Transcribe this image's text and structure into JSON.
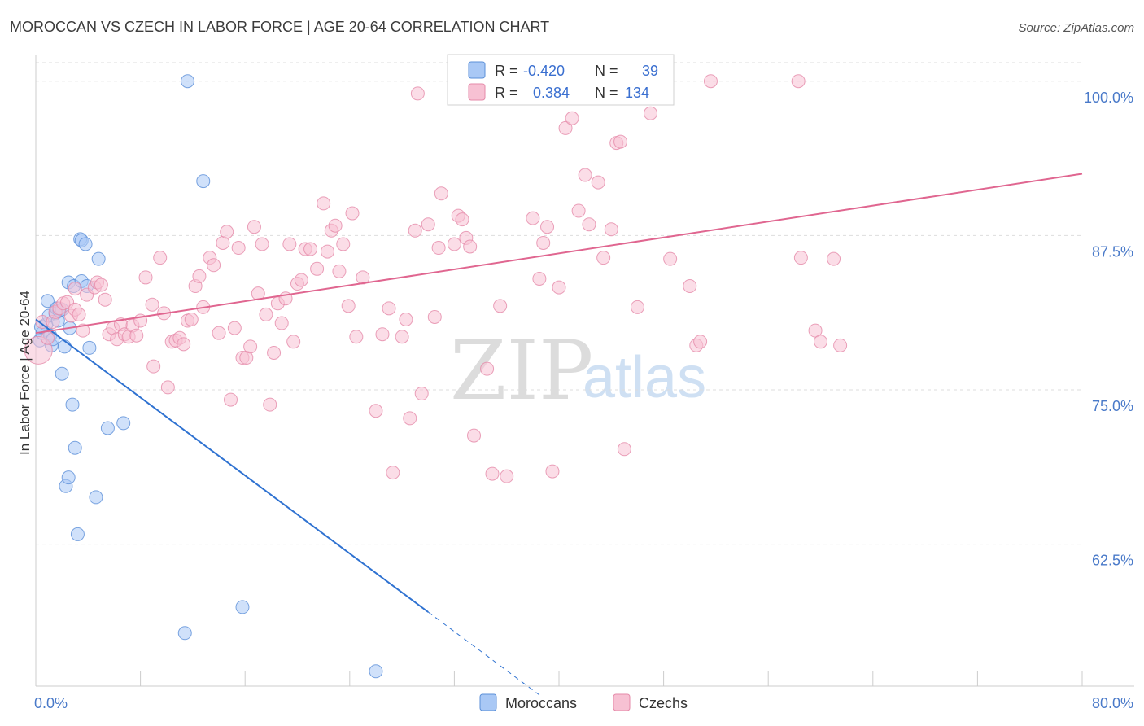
{
  "title": "MOROCCAN VS CZECH IN LABOR FORCE | AGE 20-64 CORRELATION CHART",
  "source": "Source: ZipAtlas.com",
  "watermark": {
    "zip": "ZIP",
    "atlas": "atlas"
  },
  "legend_top": {
    "rows": [
      {
        "r_label": "R =",
        "r_value": "-0.420",
        "n_label": "N =",
        "n_value": "39",
        "color": "#a9c8f5"
      },
      {
        "r_label": "R =",
        "r_value": "0.384",
        "n_label": "N =",
        "n_value": "134",
        "color": "#f5b7cb"
      }
    ]
  },
  "legend_bottom": {
    "items": [
      "Moroccans",
      "Czechs"
    ]
  },
  "colors": {
    "moroccans_fill": "#a9c8f5",
    "moroccans_stroke": "#5b8fd8",
    "moroccans_line": "#2f72d1",
    "czechs_fill": "#f7c1d3",
    "czechs_stroke": "#e58aa9",
    "czechs_line": "#e06690",
    "grid": "#dddddd",
    "tick_text": "#4a7ac9"
  },
  "chart_data": {
    "type": "scatter",
    "title": "MOROCCAN VS CZECH IN LABOR FORCE | AGE 20-64 CORRELATION CHART",
    "xlabel": "",
    "ylabel": "In Labor Force | Age 20-64",
    "xlim": [
      0,
      80
    ],
    "ylim": [
      51,
      101.5
    ],
    "x_tick_labels": [
      {
        "value": 0,
        "label": "0.0%"
      },
      {
        "value": 80,
        "label": "80.0%"
      }
    ],
    "y_tick_labels": [
      {
        "value": 62.5,
        "label": "62.5%"
      },
      {
        "value": 75.0,
        "label": "75.0%"
      },
      {
        "value": 87.5,
        "label": "87.5%"
      },
      {
        "value": 100.0,
        "label": "100.0%"
      }
    ],
    "grid": true,
    "legend_position": "top-center",
    "series": [
      {
        "name": "Moroccans",
        "r": -0.42,
        "n": 39,
        "trend": {
          "x0": 0.0,
          "y0": 80.7,
          "x1": 30.0,
          "y1": 57.0,
          "dash_to_x": 38.5
        },
        "points": [
          [
            0.3,
            79.0
          ],
          [
            0.5,
            79.6
          ],
          [
            0.8,
            80.3
          ],
          [
            0.9,
            82.2
          ],
          [
            1.0,
            81.0
          ],
          [
            1.1,
            79.4
          ],
          [
            1.2,
            78.6
          ],
          [
            1.3,
            79.1
          ],
          [
            1.5,
            81.2
          ],
          [
            1.6,
            81.6
          ],
          [
            1.7,
            80.6
          ],
          [
            1.8,
            81.4
          ],
          [
            2.0,
            81.5
          ],
          [
            2.0,
            76.3
          ],
          [
            2.3,
            67.2
          ],
          [
            2.2,
            78.5
          ],
          [
            2.5,
            67.9
          ],
          [
            2.5,
            83.7
          ],
          [
            2.6,
            80.0
          ],
          [
            2.8,
            73.8
          ],
          [
            2.9,
            83.4
          ],
          [
            3.0,
            70.3
          ],
          [
            3.2,
            63.3
          ],
          [
            3.4,
            87.2
          ],
          [
            3.5,
            87.1
          ],
          [
            3.5,
            83.8
          ],
          [
            3.8,
            86.8
          ],
          [
            3.9,
            83.4
          ],
          [
            4.1,
            78.4
          ],
          [
            4.6,
            66.3
          ],
          [
            4.8,
            85.6
          ],
          [
            5.5,
            71.9
          ],
          [
            6.7,
            72.3
          ],
          [
            11.4,
            55.3
          ],
          [
            11.6,
            100.0
          ],
          [
            12.8,
            91.9
          ],
          [
            15.8,
            57.4
          ],
          [
            26.0,
            52.2
          ],
          [
            0.4,
            80.1
          ]
        ]
      },
      {
        "name": "Czechs",
        "r": 0.384,
        "n": 134,
        "trend": {
          "x0": 0.0,
          "y0": 79.6,
          "x1": 80.0,
          "y1": 92.5
        },
        "points": [
          [
            0.2,
            78.2
          ],
          [
            0.5,
            80.5
          ],
          [
            0.9,
            79.2
          ],
          [
            1.3,
            80.5
          ],
          [
            1.5,
            81.3
          ],
          [
            1.8,
            81.6
          ],
          [
            2.1,
            82.0
          ],
          [
            2.4,
            82.1
          ],
          [
            2.7,
            81.0
          ],
          [
            3.0,
            81.5
          ],
          [
            3.0,
            83.2
          ],
          [
            3.3,
            81.1
          ],
          [
            3.6,
            79.8
          ],
          [
            3.9,
            82.7
          ],
          [
            4.5,
            83.3
          ],
          [
            4.7,
            83.7
          ],
          [
            5.0,
            83.5
          ],
          [
            5.3,
            82.3
          ],
          [
            5.6,
            79.5
          ],
          [
            5.9,
            80.0
          ],
          [
            6.2,
            79.1
          ],
          [
            6.5,
            80.3
          ],
          [
            6.8,
            79.5
          ],
          [
            7.1,
            79.3
          ],
          [
            7.4,
            80.2
          ],
          [
            7.7,
            79.4
          ],
          [
            8.0,
            80.6
          ],
          [
            8.4,
            84.1
          ],
          [
            8.9,
            81.9
          ],
          [
            9.0,
            76.9
          ],
          [
            9.5,
            85.7
          ],
          [
            9.8,
            81.2
          ],
          [
            10.1,
            75.2
          ],
          [
            10.4,
            78.9
          ],
          [
            10.7,
            79.0
          ],
          [
            11.0,
            79.2
          ],
          [
            11.3,
            78.7
          ],
          [
            11.6,
            80.6
          ],
          [
            11.9,
            80.7
          ],
          [
            12.2,
            83.4
          ],
          [
            12.5,
            84.2
          ],
          [
            12.8,
            81.7
          ],
          [
            13.3,
            85.7
          ],
          [
            13.6,
            85.1
          ],
          [
            14.0,
            79.6
          ],
          [
            14.3,
            86.9
          ],
          [
            14.6,
            87.8
          ],
          [
            14.9,
            74.2
          ],
          [
            15.2,
            80.0
          ],
          [
            15.5,
            86.5
          ],
          [
            15.8,
            77.6
          ],
          [
            16.1,
            77.6
          ],
          [
            16.4,
            78.5
          ],
          [
            16.7,
            88.2
          ],
          [
            17.0,
            82.8
          ],
          [
            17.3,
            86.8
          ],
          [
            17.6,
            81.1
          ],
          [
            17.9,
            73.8
          ],
          [
            18.2,
            78.0
          ],
          [
            18.5,
            82.0
          ],
          [
            18.8,
            80.4
          ],
          [
            19.1,
            82.4
          ],
          [
            19.4,
            86.8
          ],
          [
            19.7,
            78.9
          ],
          [
            20.0,
            83.6
          ],
          [
            20.3,
            83.9
          ],
          [
            20.6,
            86.4
          ],
          [
            21.0,
            86.4
          ],
          [
            21.5,
            84.8
          ],
          [
            22.0,
            90.1
          ],
          [
            22.3,
            86.2
          ],
          [
            22.6,
            87.9
          ],
          [
            22.9,
            88.3
          ],
          [
            23.2,
            84.6
          ],
          [
            23.5,
            86.8
          ],
          [
            23.9,
            81.8
          ],
          [
            24.2,
            89.3
          ],
          [
            24.5,
            79.3
          ],
          [
            25.0,
            84.1
          ],
          [
            26.0,
            73.3
          ],
          [
            26.5,
            79.5
          ],
          [
            27.0,
            81.6
          ],
          [
            27.3,
            68.3
          ],
          [
            28.0,
            79.3
          ],
          [
            28.3,
            80.7
          ],
          [
            28.6,
            72.7
          ],
          [
            29.0,
            87.9
          ],
          [
            29.2,
            99.0
          ],
          [
            29.5,
            74.7
          ],
          [
            30.0,
            88.4
          ],
          [
            30.5,
            80.9
          ],
          [
            30.8,
            86.5
          ],
          [
            31.0,
            90.9
          ],
          [
            32.0,
            86.8
          ],
          [
            32.3,
            89.1
          ],
          [
            32.6,
            88.8
          ],
          [
            32.9,
            87.3
          ],
          [
            33.2,
            86.6
          ],
          [
            33.5,
            71.3
          ],
          [
            34.5,
            76.7
          ],
          [
            34.9,
            68.2
          ],
          [
            35.2,
            100.0
          ],
          [
            35.5,
            81.8
          ],
          [
            36.0,
            68.0
          ],
          [
            38.0,
            88.9
          ],
          [
            38.5,
            84.0
          ],
          [
            38.8,
            86.9
          ],
          [
            39.1,
            88.2
          ],
          [
            39.5,
            68.4
          ],
          [
            40.0,
            83.3
          ],
          [
            40.5,
            96.2
          ],
          [
            41.0,
            97.0
          ],
          [
            41.5,
            89.5
          ],
          [
            42.0,
            92.4
          ],
          [
            42.3,
            88.4
          ],
          [
            43.0,
            91.8
          ],
          [
            43.4,
            85.7
          ],
          [
            44.0,
            88.0
          ],
          [
            44.4,
            95.0
          ],
          [
            44.7,
            95.1
          ],
          [
            45.0,
            70.2
          ],
          [
            46.0,
            81.7
          ],
          [
            47.0,
            97.4
          ],
          [
            48.5,
            85.6
          ],
          [
            50.0,
            83.4
          ],
          [
            50.5,
            78.6
          ],
          [
            50.8,
            78.9
          ],
          [
            51.6,
            100.0
          ],
          [
            58.3,
            100.0
          ],
          [
            58.5,
            85.7
          ],
          [
            59.6,
            79.8
          ],
          [
            60.0,
            78.9
          ],
          [
            61.0,
            85.6
          ],
          [
            61.5,
            78.6
          ]
        ]
      }
    ]
  }
}
